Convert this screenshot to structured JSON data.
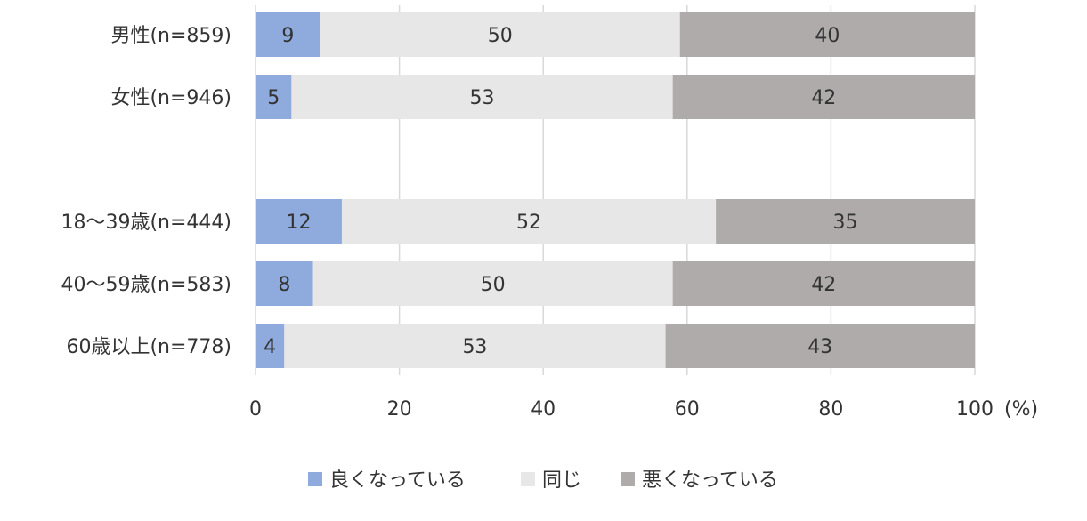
{
  "chart_data": {
    "type": "bar",
    "orientation": "horizontal",
    "stacked": true,
    "categories": [
      "男性(n=859)",
      "女性(n=946)",
      "",
      "18～39歳(n=444)",
      "40～59歳(n=583)",
      "60歳以上(n=778)"
    ],
    "series": [
      {
        "name": "良くなっている",
        "color": "#8faadc",
        "values": [
          9,
          5,
          null,
          12,
          8,
          4
        ]
      },
      {
        "name": "同じ",
        "color": "#e7e7e7",
        "values": [
          50,
          53,
          null,
          52,
          50,
          53
        ]
      },
      {
        "name": "悪くなっている",
        "color": "#afabab",
        "values": [
          40,
          42,
          null,
          35,
          42,
          43
        ]
      }
    ],
    "xlim": [
      0,
      100
    ],
    "xticks": [
      "0",
      "20",
      "40",
      "60",
      "80",
      "100"
    ],
    "unit": "(%)",
    "grid": true,
    "legend": "bottom",
    "title": "",
    "xlabel": "",
    "ylabel": ""
  }
}
